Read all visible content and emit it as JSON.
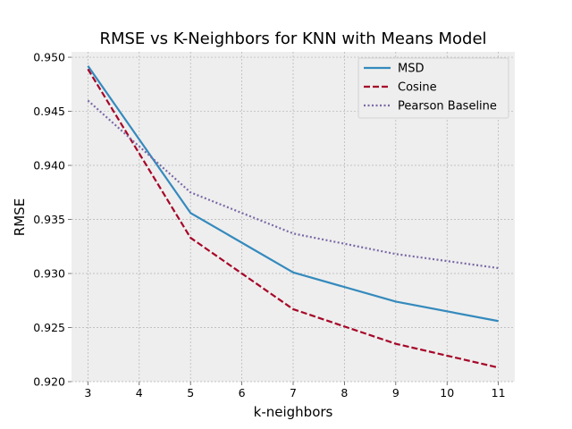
{
  "chart_data": {
    "type": "line",
    "title": "RMSE vs K-Neighbors for KNN with Means Model",
    "xlabel": "k-neighbors",
    "ylabel": "RMSE",
    "x": [
      3,
      5,
      7,
      9,
      11
    ],
    "xlim": [
      2.68,
      11.32
    ],
    "ylim": [
      0.92,
      0.9505
    ],
    "xticks": [
      "3",
      "4",
      "5",
      "6",
      "7",
      "8",
      "9",
      "10",
      "11"
    ],
    "yticks": [
      "0.920",
      "0.925",
      "0.930",
      "0.935",
      "0.940",
      "0.945",
      "0.950"
    ],
    "grid": true,
    "legend_position": "top-right",
    "series": [
      {
        "name": "MSD",
        "values": [
          0.9492,
          0.9356,
          0.9301,
          0.9274,
          0.9256
        ],
        "color": "#348ABD",
        "style": "solid"
      },
      {
        "name": "Cosine",
        "values": [
          0.9489,
          0.9333,
          0.9267,
          0.9235,
          0.9213
        ],
        "color": "#A60628",
        "style": "dashed"
      },
      {
        "name": "Pearson Baseline",
        "values": [
          0.946,
          0.9375,
          0.9337,
          0.9318,
          0.9305
        ],
        "color": "#7A68A6",
        "style": "dotted"
      }
    ]
  }
}
